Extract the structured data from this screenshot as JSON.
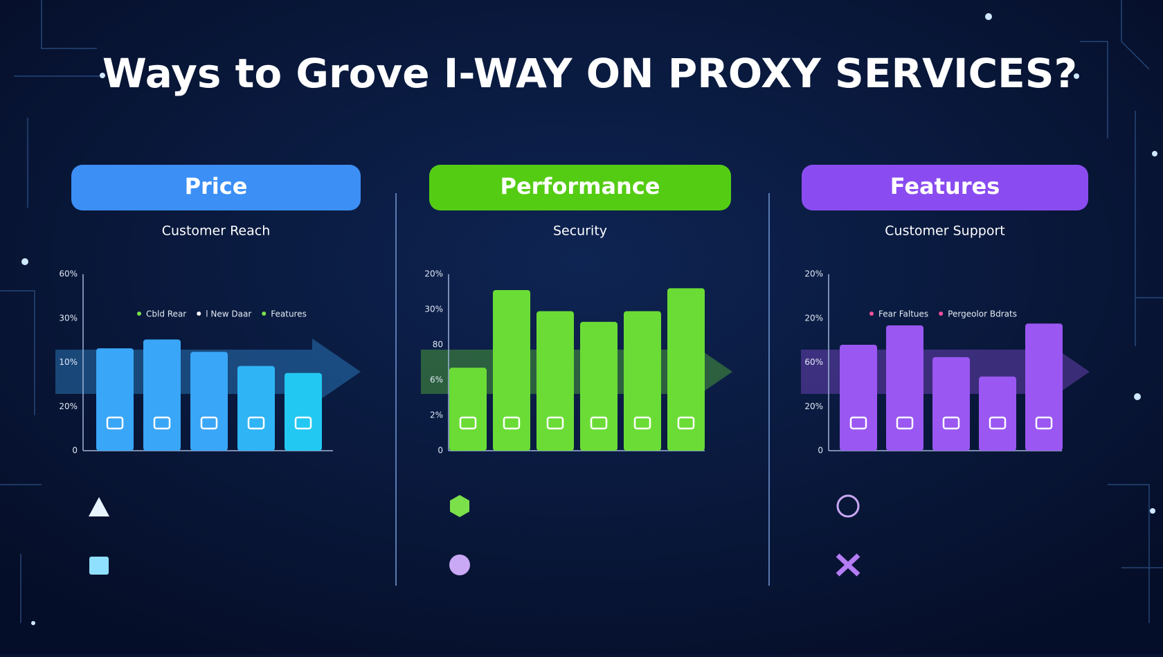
{
  "title": "Ways to Grove I-WAY ON PROXY SERVICES?",
  "chart_data": [
    {
      "type": "bar",
      "header": "Price",
      "header_color": "#3b8ff5",
      "subtitle": "Customer Reach",
      "ylabels": [
        "0",
        "20%",
        "10%",
        "30%",
        "60%"
      ],
      "legend": [
        {
          "name": "Cbld Rear",
          "color": "#7be04a"
        },
        {
          "name": "l New Daar",
          "color": "#ffffff"
        },
        {
          "name": "Features",
          "color": "#7be04a"
        }
      ],
      "values": [
        58,
        63,
        56,
        48,
        44
      ],
      "colors": [
        "#3aa6f7",
        "#3aa6f7",
        "#3aa6f7",
        "#2fb4f5",
        "#22c8f2"
      ],
      "ylim": [
        0,
        100
      ]
    },
    {
      "type": "bar",
      "header": "Performance",
      "header_color": "#55cc14",
      "subtitle": "Security",
      "ylabels": [
        "0",
        "2%",
        "6%",
        "80",
        "30%",
        "20%"
      ],
      "legend": [],
      "values": [
        47,
        91,
        79,
        73,
        79,
        92
      ],
      "colors": [
        "#6bdc35",
        "#6bdc35",
        "#6bdc35",
        "#6bdc35",
        "#6bdc35",
        "#6bdc35"
      ],
      "ylim": [
        0,
        100
      ]
    },
    {
      "type": "bar",
      "header": "Features",
      "header_color": "#8a4cf0",
      "subtitle": "Customer Support",
      "ylabels": [
        "0",
        "20%",
        "60%",
        "20%",
        "20%"
      ],
      "legend": [
        {
          "name": "Fear Faltues",
          "color": "#ff4f9a"
        },
        {
          "name": "Pergeolor Bdrats",
          "color": "#ff4f9a"
        }
      ],
      "values": [
        60,
        71,
        53,
        42,
        72
      ],
      "colors": [
        "#9a57f2",
        "#9a57f2",
        "#9a57f2",
        "#9a57f2",
        "#9a57f2"
      ],
      "ylim": [
        0,
        100
      ]
    }
  ]
}
